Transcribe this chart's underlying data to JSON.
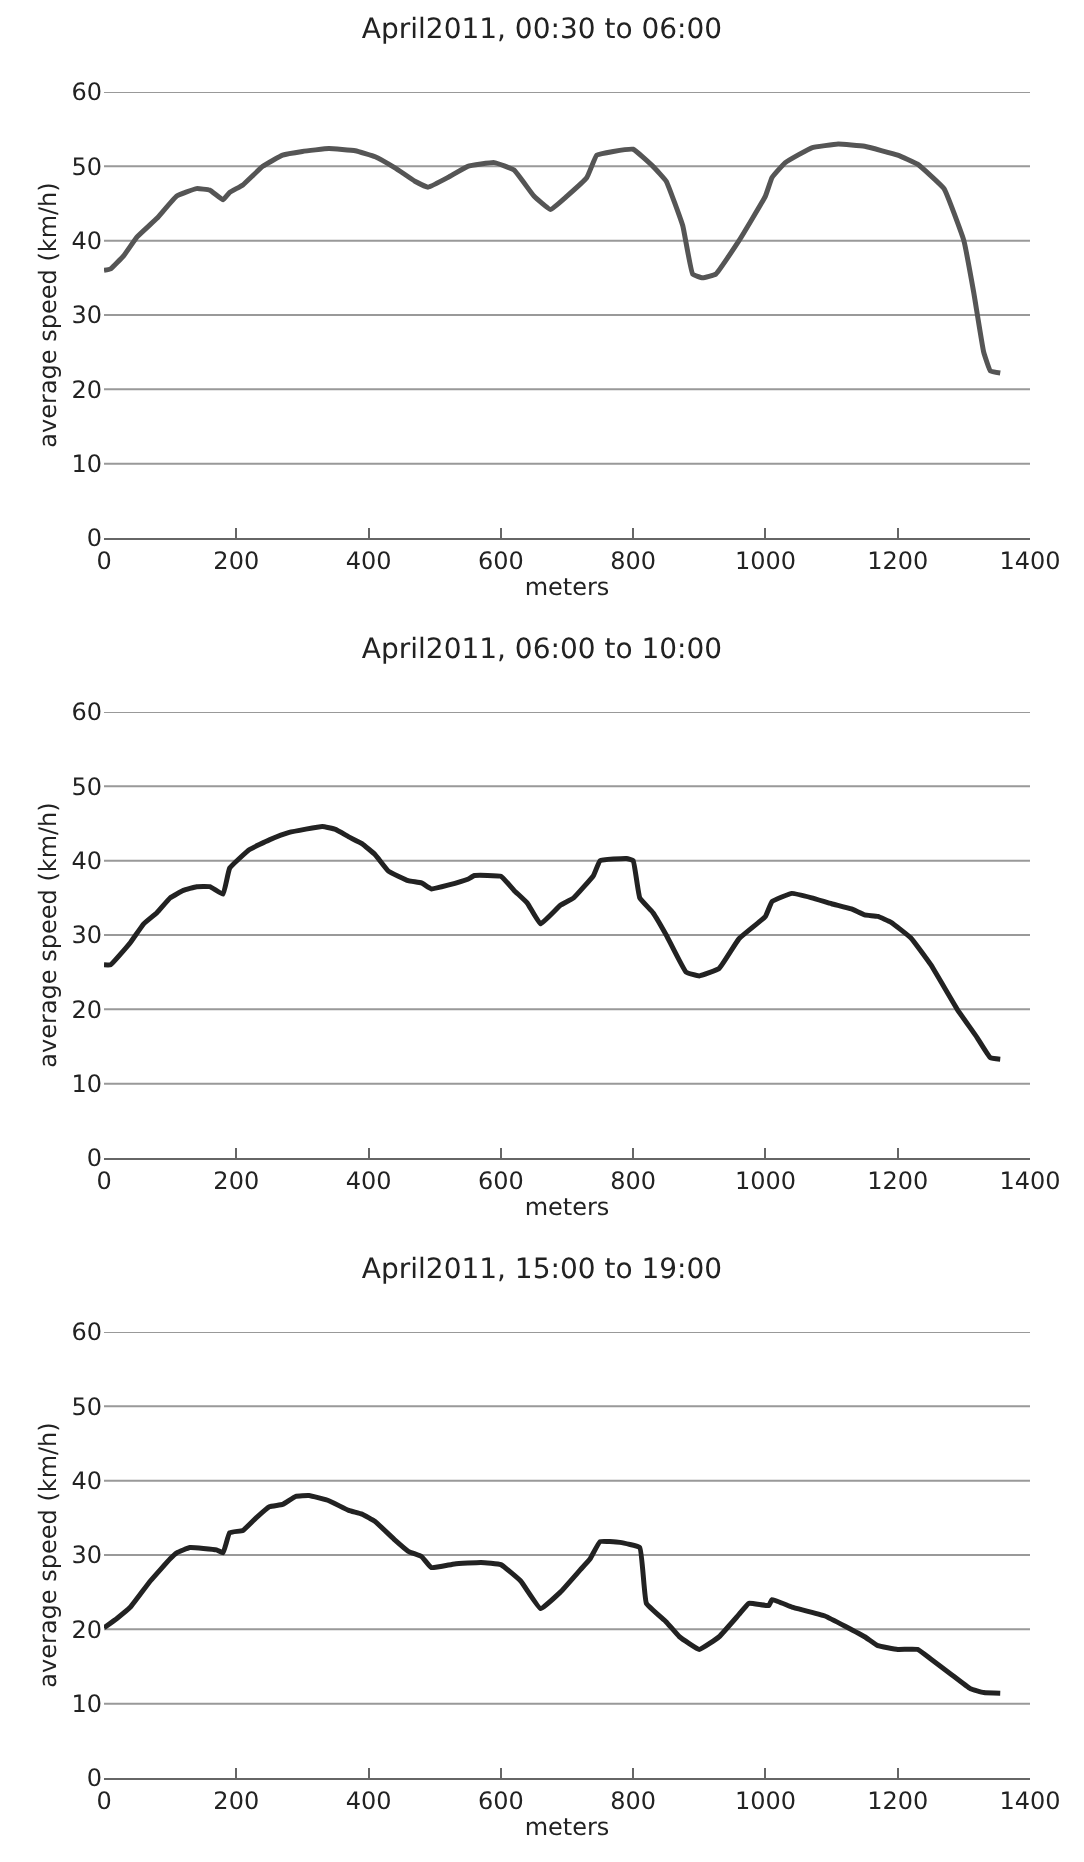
{
  "chart_data": [
    {
      "type": "line",
      "title": "April2011, 00:30 to 06:00",
      "xlabel": "meters",
      "ylabel": "average speed (km/h)",
      "xlim": [
        0,
        1400
      ],
      "xticks": [
        0,
        200,
        400,
        600,
        800,
        1000,
        1200,
        1400
      ],
      "ylim": [
        0,
        60
      ],
      "yticks": [
        0,
        10,
        20,
        30,
        40,
        50,
        60
      ],
      "grid": "y",
      "marker": "none",
      "line_style": "solid",
      "x": [
        0,
        10,
        30,
        50,
        80,
        110,
        140,
        160,
        180,
        190,
        210,
        240,
        270,
        300,
        340,
        380,
        410,
        440,
        470,
        490,
        520,
        550,
        590,
        620,
        650,
        675,
        700,
        730,
        745,
        770,
        800,
        830,
        850,
        875,
        890,
        905,
        925,
        960,
        1000,
        1010,
        1030,
        1070,
        1110,
        1150,
        1200,
        1230,
        1270,
        1300,
        1315,
        1330,
        1340,
        1355
      ],
      "series": [
        {
          "color": "#555555",
          "values": [
            36,
            36.2,
            38,
            40.5,
            43,
            46,
            47,
            46.8,
            45.5,
            46.5,
            47.5,
            50,
            51.5,
            52,
            52.4,
            52.1,
            51.3,
            49.8,
            48,
            47.2,
            48.5,
            50,
            50.5,
            49.5,
            46,
            44.2,
            46,
            48.5,
            51.5,
            52,
            52.3,
            50,
            48,
            42,
            35.5,
            35,
            35.5,
            40,
            46,
            48.5,
            50.5,
            52.5,
            53,
            52.7,
            51.5,
            50.3,
            47,
            40,
            33,
            25,
            22.5,
            22.2
          ]
        }
      ]
    },
    {
      "type": "line",
      "title": "April2011, 06:00 to 10:00",
      "xlabel": "meters",
      "ylabel": "average speed (km/h)",
      "xlim": [
        0,
        1400
      ],
      "xticks": [
        0,
        200,
        400,
        600,
        800,
        1000,
        1200,
        1400
      ],
      "ylim": [
        0,
        60
      ],
      "yticks": [
        0,
        10,
        20,
        30,
        40,
        50,
        60
      ],
      "grid": "y",
      "marker": "none",
      "line_style": "solid",
      "x": [
        0,
        10,
        40,
        60,
        80,
        100,
        120,
        140,
        160,
        180,
        190,
        220,
        250,
        280,
        330,
        350,
        370,
        390,
        410,
        430,
        460,
        480,
        495,
        520,
        550,
        560,
        600,
        620,
        640,
        660,
        690,
        710,
        740,
        750,
        790,
        800,
        810,
        830,
        850,
        880,
        900,
        930,
        960,
        1000,
        1010,
        1040,
        1070,
        1100,
        1130,
        1150,
        1170,
        1190,
        1220,
        1250,
        1290,
        1320,
        1340,
        1355
      ],
      "series": [
        {
          "color": "#222222",
          "values": [
            26,
            26,
            29,
            31.5,
            33,
            35,
            36,
            36.5,
            36.5,
            35.5,
            39,
            41.5,
            42.8,
            43.8,
            44.6,
            44.2,
            43.2,
            42.3,
            40.8,
            38.6,
            37.3,
            37,
            36.2,
            36.7,
            37.5,
            38,
            37.9,
            36,
            34.3,
            31.5,
            34,
            35,
            38,
            40,
            40.3,
            40,
            35,
            33,
            30,
            25,
            24.5,
            25.5,
            29.5,
            32.5,
            34.5,
            35.6,
            35,
            34.2,
            33.5,
            32.7,
            32.5,
            31.7,
            29.6,
            26,
            20,
            16.2,
            13.5,
            13.3
          ]
        }
      ]
    },
    {
      "type": "line",
      "title": "April2011, 15:00 to 19:00",
      "xlabel": "meters",
      "ylabel": "average speed (km/h)",
      "xlim": [
        0,
        1400
      ],
      "xticks": [
        0,
        200,
        400,
        600,
        800,
        1000,
        1200,
        1400
      ],
      "ylim": [
        0,
        60
      ],
      "yticks": [
        0,
        10,
        20,
        30,
        40,
        50,
        60
      ],
      "grid": "y",
      "marker": "none",
      "line_style": "solid",
      "x": [
        0,
        20,
        40,
        70,
        100,
        110,
        130,
        170,
        180,
        190,
        210,
        230,
        250,
        270,
        290,
        310,
        340,
        370,
        390,
        410,
        440,
        460,
        480,
        495,
        530,
        570,
        600,
        630,
        660,
        690,
        720,
        735,
        750,
        780,
        810,
        820,
        850,
        870,
        900,
        930,
        960,
        975,
        1005,
        1010,
        1040,
        1090,
        1150,
        1170,
        1200,
        1230,
        1250,
        1280,
        1310,
        1330,
        1355
      ],
      "series": [
        {
          "color": "#222222",
          "values": [
            20.2,
            21.5,
            23,
            26.5,
            29.5,
            30.3,
            31,
            30.7,
            30.3,
            33,
            33.3,
            35,
            36.5,
            36.8,
            37.9,
            38,
            37.3,
            36,
            35.5,
            34.5,
            32,
            30.5,
            29.8,
            28.3,
            28.8,
            29,
            28.7,
            26.5,
            22.8,
            25,
            28,
            29.5,
            31.8,
            31.7,
            31,
            23.5,
            21,
            19,
            17.3,
            19,
            22,
            23.5,
            23.2,
            24,
            23,
            21.8,
            19,
            17.8,
            17.3,
            17.3,
            16,
            14,
            12,
            11.5,
            11.4
          ]
        }
      ]
    }
  ]
}
